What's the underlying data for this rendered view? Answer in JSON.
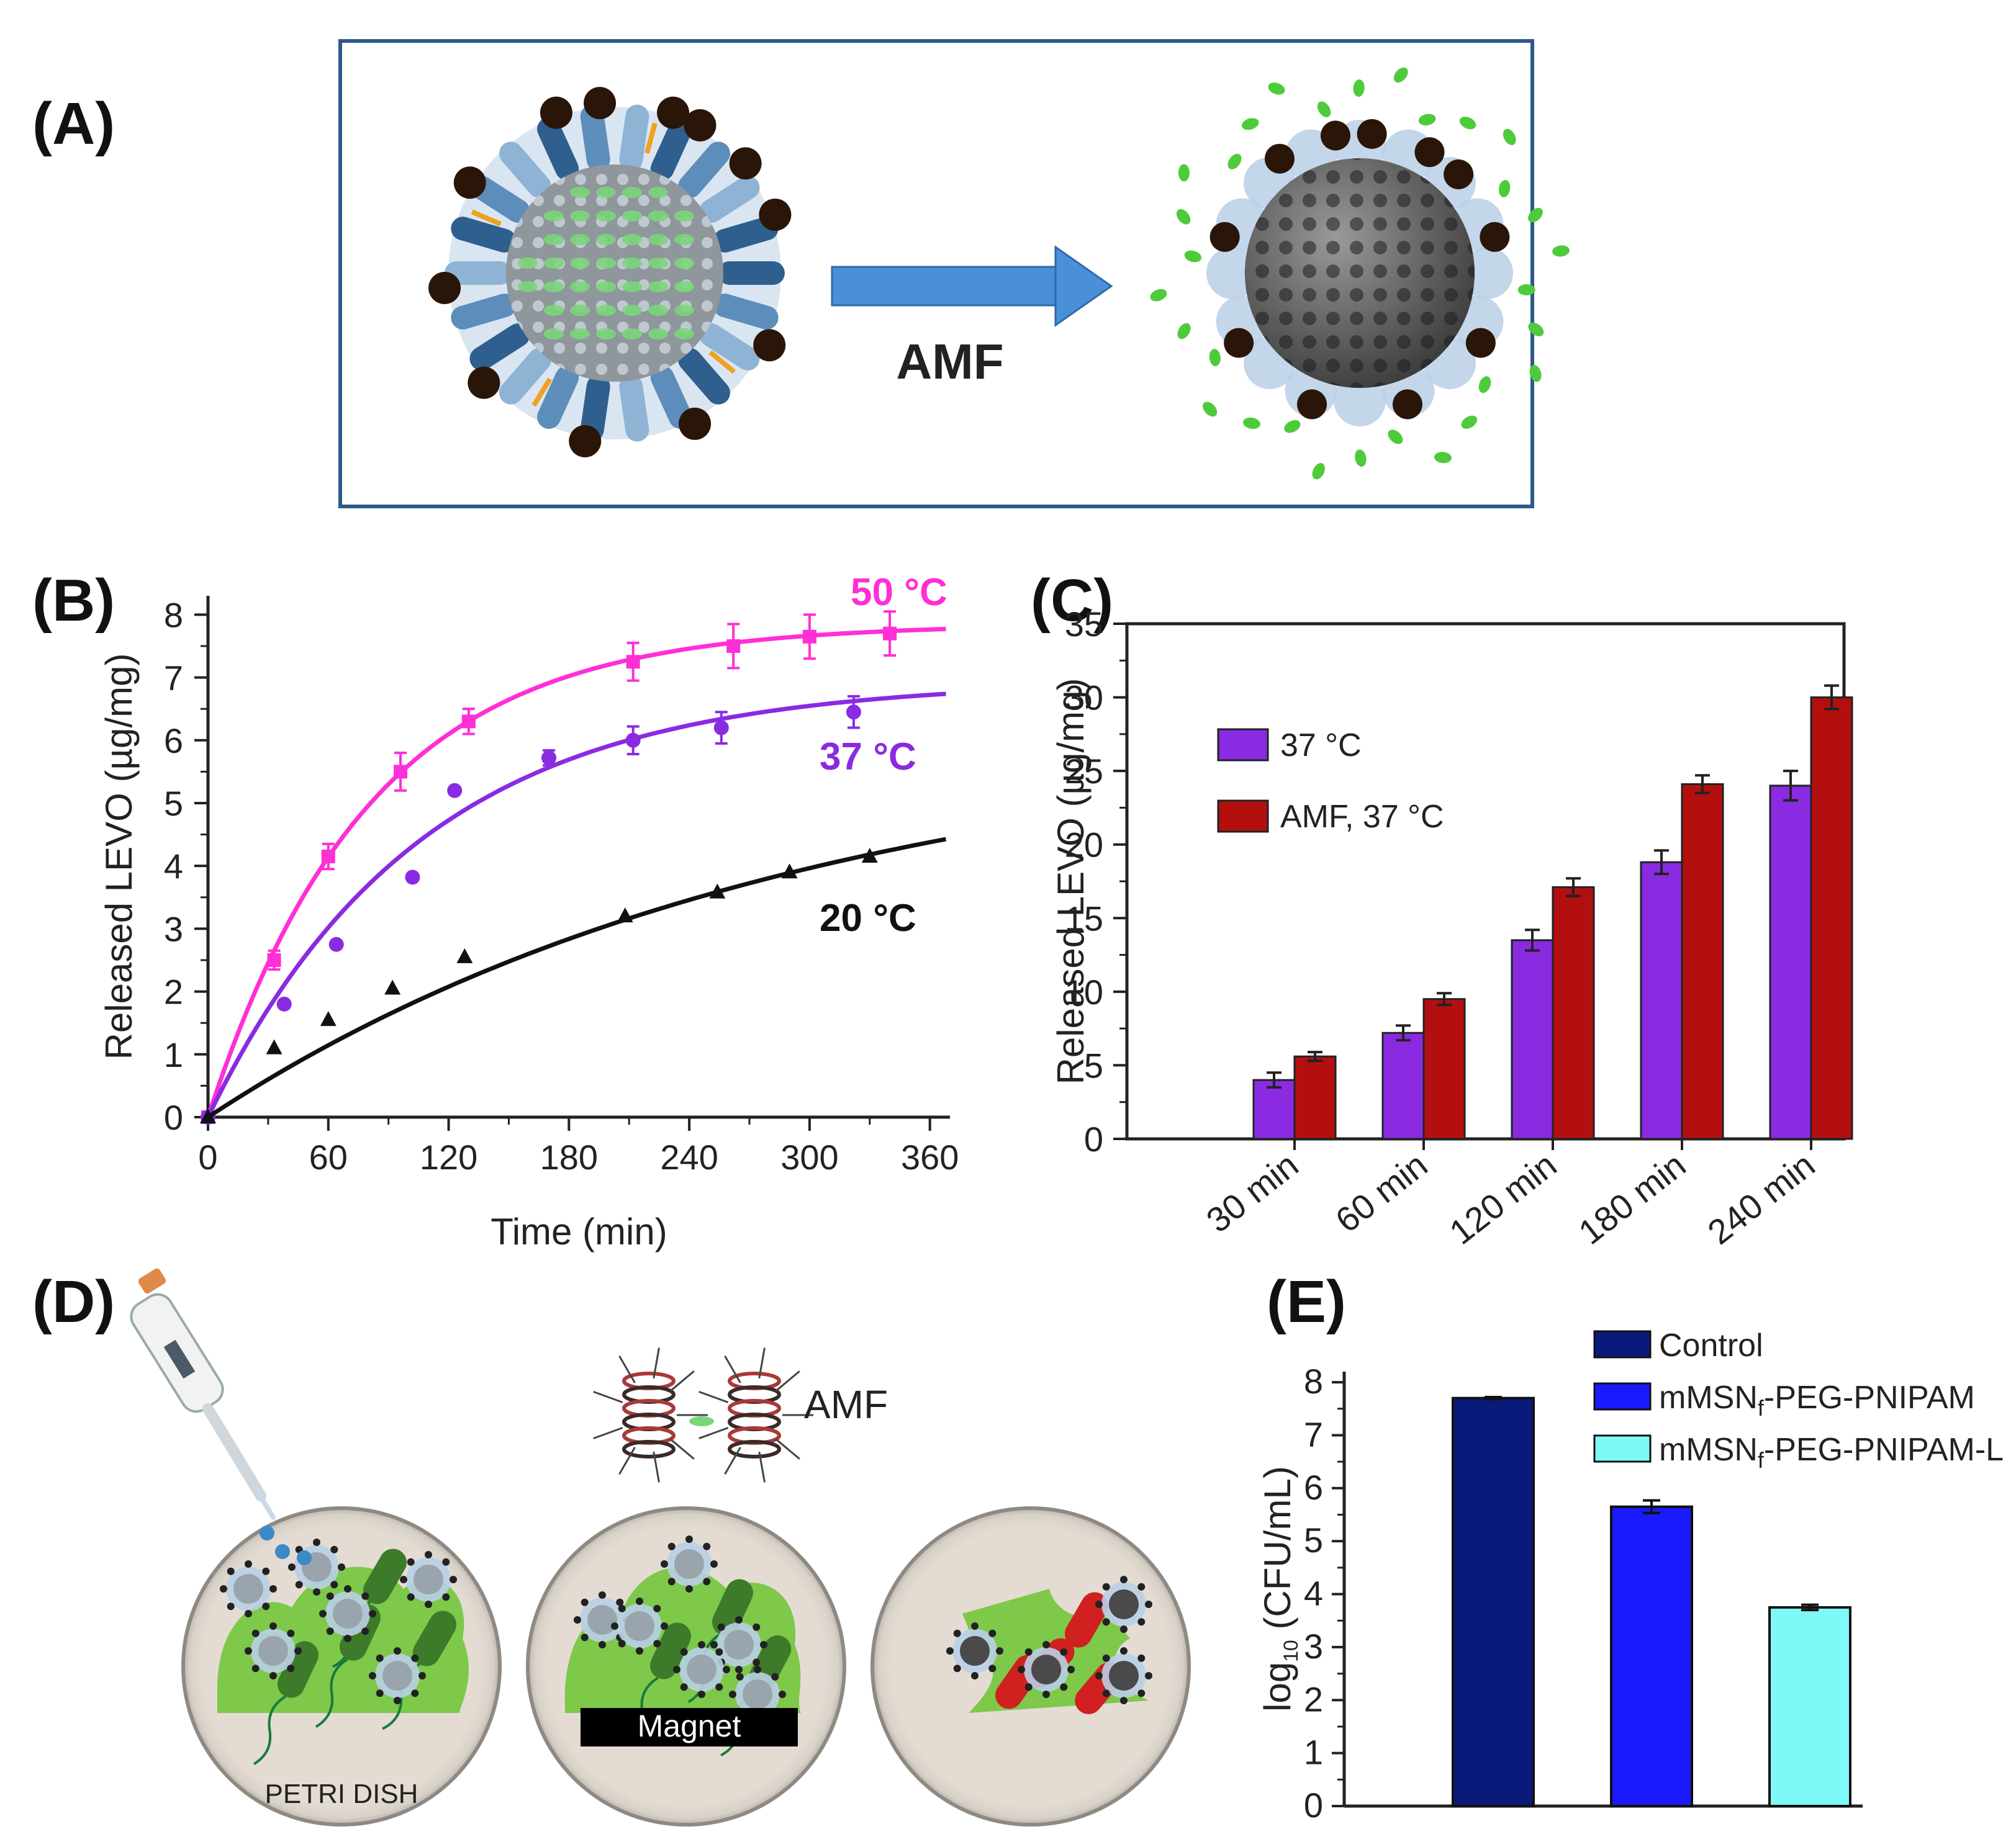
{
  "panels": {
    "a": {
      "label": "(A)",
      "arrow_text": "AMF"
    },
    "b": {
      "label": "(B)"
    },
    "c": {
      "label": "(C)"
    },
    "d": {
      "label": "(D)",
      "amf_text": "AMF",
      "magnet_text": "Magnet",
      "dish_text": "PETRI DISH"
    },
    "e": {
      "label": "(E)"
    }
  },
  "colors": {
    "c50": "#ff2fd6",
    "c37": "#8a2be2",
    "c20": "#111111",
    "violet_bar": "#8a2be2",
    "red_bar": "#b30f0f",
    "navy": "#0a1a7a",
    "blue": "#1a1aff",
    "cyan": "#7ff8f8",
    "frame_blue": "#2e5a8a",
    "arrow_blue": "#4a90d9"
  },
  "chart_data": [
    {
      "id": "B",
      "type": "scatter",
      "xlabel": "Time (min)",
      "ylabel": "Released LEVO (µg/mg)",
      "xlim": [
        0,
        370
      ],
      "ylim": [
        0,
        8.3
      ],
      "xticks": [
        "0",
        "60",
        "120",
        "180",
        "240",
        "300",
        "360"
      ],
      "yticks": [
        "0",
        "1",
        "2",
        "3",
        "4",
        "5",
        "6",
        "7",
        "8"
      ],
      "series": [
        {
          "name": "50 °C",
          "color_key": "c50",
          "marker": "square",
          "x": [
            0,
            33,
            60,
            96,
            130,
            212,
            262,
            300,
            340
          ],
          "y": [
            0,
            2.5,
            4.15,
            5.5,
            6.3,
            7.25,
            7.5,
            7.65,
            7.7
          ],
          "err": [
            0,
            0.15,
            0.2,
            0.3,
            0.2,
            0.3,
            0.35,
            0.35,
            0.35
          ],
          "fit": {
            "A": 7.85,
            "k": 0.0125
          }
        },
        {
          "name": "37 °C",
          "color_key": "c37",
          "marker": "circle",
          "x": [
            0,
            38,
            64,
            102,
            123,
            170,
            212,
            256,
            322
          ],
          "y": [
            0,
            1.8,
            2.75,
            3.82,
            5.2,
            5.72,
            6.0,
            6.2,
            6.45
          ],
          "err": [
            0,
            0,
            0,
            0,
            0,
            0.12,
            0.22,
            0.25,
            0.25
          ],
          "fit": {
            "A": 6.95,
            "k": 0.0095
          }
        },
        {
          "name": "20 °C",
          "color_key": "c20",
          "marker": "triangle",
          "x": [
            0,
            33,
            60,
            92,
            128,
            208,
            254,
            290,
            330
          ],
          "y": [
            0,
            1.1,
            1.55,
            2.05,
            2.55,
            3.2,
            3.58,
            3.9,
            4.15
          ],
          "err": [
            0,
            0,
            0,
            0,
            0,
            0,
            0,
            0,
            0
          ],
          "fit": {
            "A": 6.2,
            "k": 0.0034
          }
        }
      ]
    },
    {
      "id": "C",
      "type": "bar",
      "ylabel": "Released LEVO (µg/mg)",
      "categories": [
        "30 min",
        "60 min",
        "120 min",
        "180 min",
        "240 min"
      ],
      "ylim": [
        0,
        35
      ],
      "yticks": [
        "0",
        "5",
        "10",
        "15",
        "20",
        "25",
        "30",
        "35"
      ],
      "series": [
        {
          "name": "37 °C",
          "color_key": "violet_bar",
          "values": [
            4.0,
            7.2,
            13.5,
            18.8,
            24.0
          ],
          "err": [
            0.5,
            0.5,
            0.7,
            0.8,
            1.0
          ]
        },
        {
          "name": "AMF, 37 °C",
          "color_key": "red_bar",
          "values": [
            5.6,
            9.5,
            17.1,
            24.1,
            30.0
          ],
          "err": [
            0.3,
            0.4,
            0.6,
            0.6,
            0.8
          ]
        }
      ]
    },
    {
      "id": "E",
      "type": "bar",
      "ylabel": "log10 (CFU/mL)",
      "categories": [
        "Control",
        "mMSNf-PEG-PNIPAM",
        "mMSNf-PEG-PNIPAM-L"
      ],
      "legend": [
        "Control",
        "mMSN",
        "-PEG-PNIPAM",
        "mMSN",
        "-PEG-PNIPAM-L"
      ],
      "ylim": [
        0,
        8.2
      ],
      "yticks": [
        "0",
        "1",
        "2",
        "3",
        "4",
        "5",
        "6",
        "7",
        "8"
      ],
      "values": [
        7.7,
        5.65,
        3.75
      ],
      "err": [
        0.02,
        0.12,
        0.05
      ],
      "color_keys": [
        "navy",
        "blue",
        "cyan"
      ]
    }
  ]
}
